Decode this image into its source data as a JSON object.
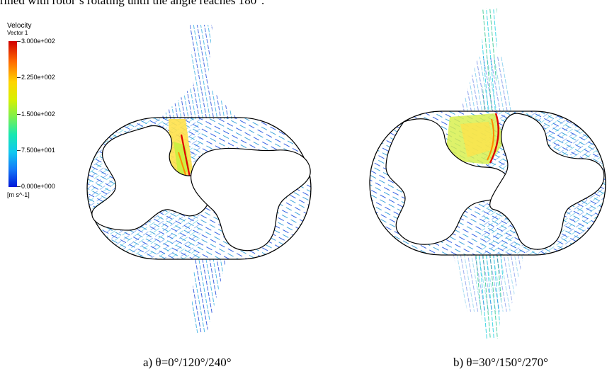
{
  "page": {
    "intro_text": "rmed with rotor’s rotating until the angle reaches 180°."
  },
  "legend": {
    "title": "Velocity",
    "subtitle": "Vector 1",
    "ticks": [
      "3.000e+002",
      "2.250e+002",
      "1.500e+002",
      "7.500e+001",
      "0.000e+000"
    ],
    "unit": "[m s^-1]",
    "colors": [
      "#d00000",
      "#ff6a00",
      "#ffd400",
      "#7cf050",
      "#10c8f0",
      "#1478f8",
      "#0018d8"
    ]
  },
  "panels": [
    {
      "label": "a) θ=0°/120°/240°"
    },
    {
      "label": "b) θ=30°/150°/270°"
    }
  ]
}
